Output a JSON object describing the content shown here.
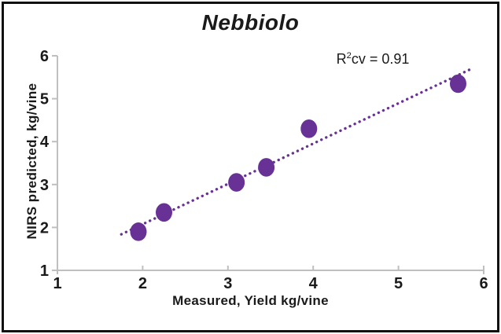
{
  "chart_data": {
    "type": "scatter",
    "title": "Nebbiolo",
    "annotation": {
      "base": "R",
      "exponent": "2",
      "rest": "cv = 0.91"
    },
    "r2cv": 0.91,
    "xlabel": "Measured, Yield kg/vine",
    "ylabel": "NIRS predicted, kg/vine",
    "xlim": [
      1,
      6
    ],
    "ylim": [
      1,
      6
    ],
    "x_ticks": [
      "1",
      "2",
      "3",
      "4",
      "5",
      "6"
    ],
    "y_ticks": [
      "1",
      "2",
      "3",
      "4",
      "5",
      "6"
    ],
    "grid": false,
    "legend": "none",
    "series": [
      {
        "name": "Nebbiolo",
        "points": [
          [
            1.95,
            1.9
          ],
          [
            2.25,
            2.35
          ],
          [
            3.1,
            3.05
          ],
          [
            3.45,
            3.4
          ],
          [
            3.95,
            4.3
          ],
          [
            5.7,
            5.35
          ]
        ]
      }
    ],
    "trendline": {
      "style": "dotted",
      "x1": 1.75,
      "y1": 1.84,
      "x2": 5.87,
      "y2": 5.71
    },
    "colors": {
      "marker": "#683195",
      "trendline": "#683195",
      "axis_line": "#BFBFBF",
      "text": "#1A1A1A",
      "background": "#FFFFFF",
      "border": "#111111"
    }
  }
}
